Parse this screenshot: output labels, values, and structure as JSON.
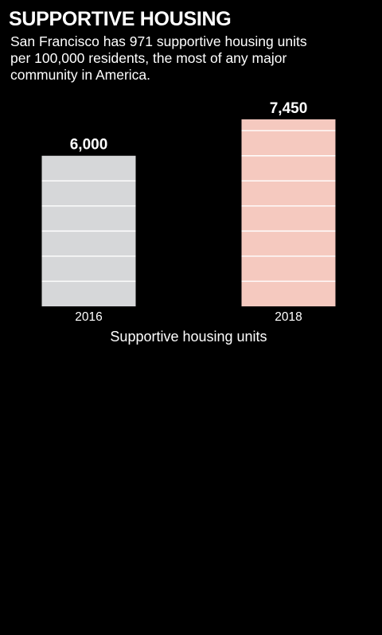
{
  "header": {
    "title": "SUPPORTIVE HOUSING",
    "subtitle": "San Francisco has 971 supportive housing units per 100,000 residents, the most of any major community in America."
  },
  "chart_data": {
    "type": "bar",
    "categories": [
      "2016",
      "2018"
    ],
    "values": [
      6000,
      7450
    ],
    "value_labels": [
      "6,000",
      "7,450"
    ],
    "xlabel": "Supportive housing units",
    "ylabel": "",
    "ylim": [
      0,
      7450
    ],
    "grid": "horizontal lines every 1,000 units inside bars",
    "colors": [
      "#d6d7d9",
      "#f5c9bf"
    ]
  }
}
